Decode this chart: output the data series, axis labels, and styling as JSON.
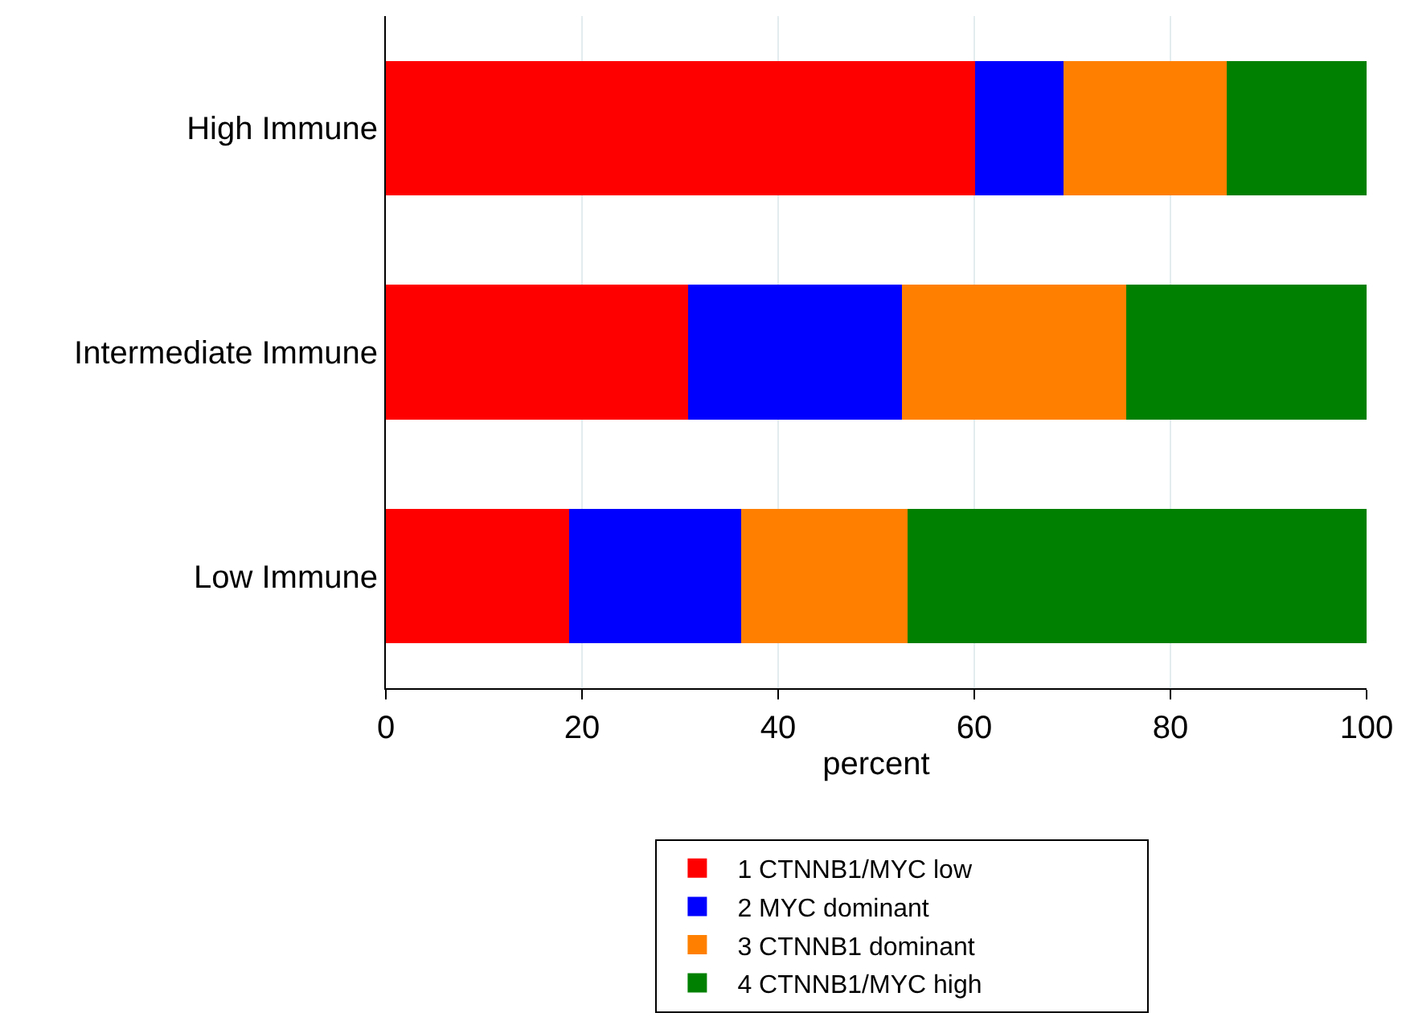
{
  "chart_data": {
    "type": "bar",
    "orientation": "horizontal",
    "stacked": true,
    "xlabel": "percent",
    "categories": [
      "High Immune",
      "Intermediate Immune",
      "Low Immune"
    ],
    "series": [
      {
        "name": "1 CTNNB1/MYC low",
        "color": "#ff0000",
        "values": [
          60.1,
          30.8,
          18.7
        ]
      },
      {
        "name": "2 MYC dominant",
        "color": "#0000ff",
        "values": [
          9.0,
          21.8,
          17.5
        ]
      },
      {
        "name": "3 CTNNB1 dominant",
        "color": "#ff8000",
        "values": [
          16.6,
          22.9,
          17.0
        ]
      },
      {
        "name": "4 CTNNB1/MYC high",
        "color": "#008000",
        "values": [
          14.3,
          24.5,
          46.8
        ]
      }
    ],
    "xlim": [
      0,
      100
    ],
    "xticks": [
      0,
      20,
      40,
      60,
      80,
      100
    ],
    "grid": "x",
    "legend": "bottom"
  }
}
